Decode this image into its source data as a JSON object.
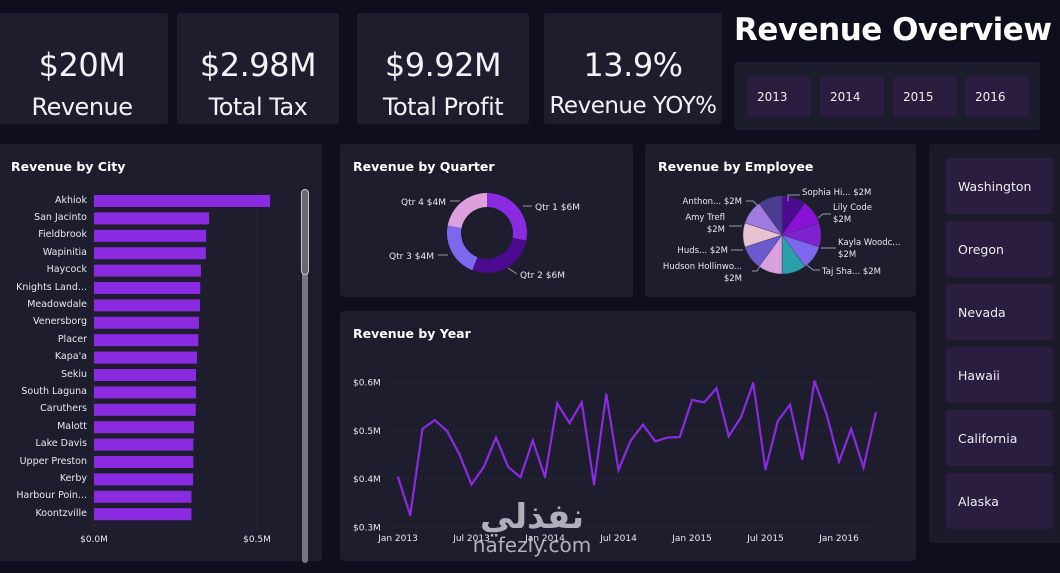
{
  "header": {
    "title": "Revenue Overview"
  },
  "kpis": [
    {
      "value": "$20M",
      "label": "Revenue"
    },
    {
      "value": "$2.98M",
      "label": "Total Tax"
    },
    {
      "value": "$9.92M",
      "label": "Total Profit"
    },
    {
      "value": "13.9%",
      "label": "Revenue YOY%"
    }
  ],
  "year_slicer": {
    "options": [
      "2013",
      "2014",
      "2015",
      "2016"
    ]
  },
  "state_slicer": {
    "options": [
      "Washington",
      "Oregon",
      "Nevada",
      "Hawaii",
      "California",
      "Alaska"
    ]
  },
  "colors": {
    "background": "#0f0e1c",
    "panel": "#1e1d2e",
    "bar": "#8a2be2",
    "line": "#8a2be2",
    "slicer_button": "#2a1d40"
  },
  "watermark": {
    "arabic": "نفذلي",
    "latin": "nafezly.com"
  },
  "chart_data": [
    {
      "type": "bar",
      "orientation": "horizontal",
      "title": "Revenue by City",
      "categories": [
        "Akhiok",
        "San Jacinto",
        "Fieldbrook",
        "Wapinitia",
        "Haycock",
        "Knights Land...",
        "Meadowdale",
        "Venersborg",
        "Placer",
        "Kapa'a",
        "Sekiu",
        "South Laguna",
        "Caruthers",
        "Malott",
        "Lake Davis",
        "Upper Preston",
        "Kerby",
        "Harbour Poin...",
        "Koontzville"
      ],
      "values": [
        0.54,
        0.353,
        0.344,
        0.343,
        0.328,
        0.326,
        0.325,
        0.322,
        0.32,
        0.316,
        0.313,
        0.313,
        0.312,
        0.307,
        0.305,
        0.305,
        0.304,
        0.299,
        0.299
      ],
      "unit": "$M",
      "xlim": [
        0,
        0.65
      ],
      "x_ticks": [
        "$0.0M",
        "$0.5M"
      ],
      "x_tick_values": [
        0,
        0.5
      ],
      "color": "#8a2be2"
    },
    {
      "type": "pie",
      "donut": true,
      "title": "Revenue by Quarter",
      "slices": [
        {
          "label": "Qtr 1",
          "value_label": "$6M",
          "value": 5.6,
          "color": "#8a2be2"
        },
        {
          "label": "Qtr 2",
          "value_label": "$6M",
          "value": 5.6,
          "color": "#4b0a8f"
        },
        {
          "label": "Qtr 3",
          "value_label": "$4M",
          "value": 4.4,
          "color": "#7b68ee"
        },
        {
          "label": "Qtr 4",
          "value_label": "$4M",
          "value": 4.4,
          "color": "#dda0dd"
        }
      ]
    },
    {
      "type": "pie",
      "donut": false,
      "title": "Revenue by Employee",
      "slices": [
        {
          "label": "Sophia Hi...",
          "value_label": "$2M",
          "value": 2,
          "color": "#4b0a8f"
        },
        {
          "label": "Lily Code",
          "value_label": "$2M",
          "value": 2,
          "color": "#8a12d8"
        },
        {
          "label": "Kayla Woodc...",
          "value_label": "$2M",
          "value": 2,
          "color": "#7e22ce"
        },
        {
          "label": "Taj Sha...",
          "value_label": "$2M",
          "value": 2,
          "color": "#7b68ee"
        },
        {
          "label": "",
          "value_label": "",
          "value": 2,
          "color": "#2aa0a8"
        },
        {
          "label": "Hudson Hollinwo...",
          "value_label": "$2M",
          "value": 2,
          "color": "#d9a0e0"
        },
        {
          "label": "Huds...",
          "value_label": "$2M",
          "value": 2,
          "color": "#6a5acd"
        },
        {
          "label": "Amy Trefl",
          "value_label": "$2M",
          "value": 2,
          "color": "#e6c3d0"
        },
        {
          "label": "Anthon...",
          "value_label": "$2M",
          "value": 2,
          "color": "#9f7be0"
        },
        {
          "label": "",
          "value_label": "",
          "value": 2,
          "color": "#4a3d8f"
        }
      ]
    },
    {
      "type": "line",
      "title": "Revenue by Year",
      "x_start": "Jan 2013",
      "x_interval": "month",
      "x_ticks": [
        "Jan 2013",
        "Jul 2013",
        "Jan 2014",
        "Jul 2014",
        "Jan 2015",
        "Jul 2015",
        "Jan 2016"
      ],
      "x_tick_indices": [
        0,
        6,
        12,
        18,
        24,
        30,
        36
      ],
      "y_ticks": [
        "$0.3M",
        "$0.4M",
        "$0.5M",
        "$0.6M"
      ],
      "y_tick_values": [
        0.3,
        0.4,
        0.5,
        0.6
      ],
      "ylim": [
        0.3,
        0.6
      ],
      "unit": "$M",
      "grid": true,
      "color": "#8a2be2",
      "values": [
        0.403,
        0.324,
        0.503,
        0.521,
        0.499,
        0.451,
        0.388,
        0.424,
        0.485,
        0.424,
        0.403,
        0.479,
        0.403,
        0.556,
        0.515,
        0.558,
        0.388,
        0.575,
        0.418,
        0.479,
        0.512,
        0.477,
        0.485,
        0.486,
        0.563,
        0.558,
        0.587,
        0.488,
        0.527,
        0.598,
        0.419,
        0.519,
        0.553,
        0.44,
        0.602,
        0.532,
        0.435,
        0.503,
        0.423,
        0.536
      ]
    }
  ]
}
